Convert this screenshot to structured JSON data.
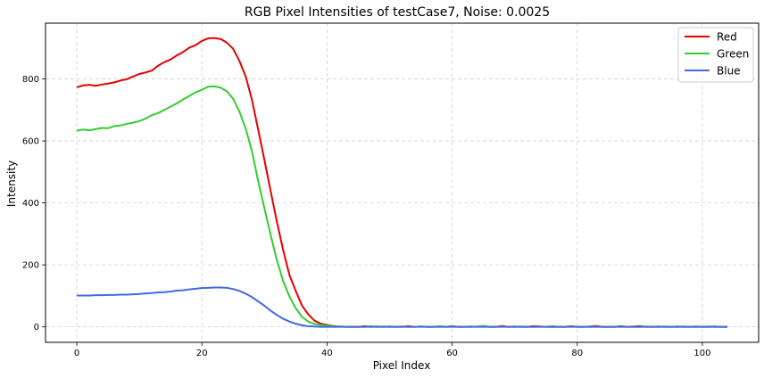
{
  "chart_data": {
    "type": "line",
    "title": "RGB Pixel Intensities of testCase7, Noise: 0.0025",
    "xlabel": "Pixel Index",
    "ylabel": "Intensity",
    "xlim": [
      -5,
      109
    ],
    "ylim": [
      -50,
      980
    ],
    "xticks": [
      0,
      20,
      40,
      60,
      80,
      100
    ],
    "yticks": [
      0,
      200,
      400,
      600,
      800
    ],
    "grid": true,
    "legend_position": "top-right",
    "x": [
      0,
      1,
      2,
      3,
      4,
      5,
      6,
      7,
      8,
      9,
      10,
      11,
      12,
      13,
      14,
      15,
      16,
      17,
      18,
      19,
      20,
      21,
      22,
      23,
      24,
      25,
      26,
      27,
      28,
      29,
      30,
      31,
      32,
      33,
      34,
      35,
      36,
      37,
      38,
      39,
      40,
      41,
      42,
      43,
      44,
      45,
      46,
      47,
      48,
      49,
      50,
      51,
      52,
      53,
      54,
      55,
      56,
      57,
      58,
      59,
      60,
      61,
      62,
      63,
      64,
      65,
      66,
      67,
      68,
      69,
      70,
      71,
      72,
      73,
      74,
      75,
      76,
      77,
      78,
      79,
      80,
      81,
      82,
      83,
      84,
      85,
      86,
      87,
      88,
      89,
      90,
      91,
      92,
      93,
      94,
      95,
      96,
      97,
      98,
      99,
      100,
      101,
      102,
      103,
      104
    ],
    "series": [
      {
        "name": "Red",
        "color": "#e60000",
        "values": [
          773,
          779,
          781,
          778,
          782,
          785,
          789,
          795,
          799,
          808,
          816,
          821,
          827,
          843,
          854,
          863,
          876,
          887,
          901,
          909,
          923,
          931,
          932,
          929,
          917,
          897,
          858,
          808,
          733,
          636,
          538,
          437,
          338,
          247,
          167,
          116,
          69,
          40,
          20,
          10,
          6,
          3,
          1,
          0,
          0,
          0,
          2,
          0,
          1,
          0,
          1,
          0,
          0,
          2,
          0,
          1,
          0,
          0,
          1,
          0,
          2,
          0,
          0,
          1,
          0,
          2,
          0,
          0,
          3,
          0,
          1,
          0,
          0,
          2,
          1,
          0,
          0,
          0,
          0,
          2,
          0,
          0,
          1,
          3,
          0,
          0,
          0,
          2,
          0,
          1,
          2,
          0,
          0,
          1,
          0,
          0,
          1,
          0,
          0,
          1,
          0,
          0,
          1,
          0,
          0
        ]
      },
      {
        "name": "Green",
        "color": "#32cd32",
        "values": [
          633,
          637,
          634,
          638,
          642,
          641,
          648,
          650,
          655,
          659,
          664,
          672,
          683,
          690,
          700,
          711,
          721,
          734,
          745,
          757,
          765,
          775,
          776,
          772,
          760,
          736,
          695,
          640,
          567,
          470,
          382,
          296,
          214,
          147,
          98,
          60,
          32,
          17,
          9,
          6,
          4,
          2,
          1,
          0,
          0,
          0,
          0,
          2,
          0,
          1,
          0,
          0,
          1,
          0,
          0,
          1,
          0,
          0,
          2,
          0,
          1,
          0,
          0,
          0,
          1,
          3,
          0,
          0,
          1,
          0,
          0,
          1,
          0,
          0,
          1,
          0,
          2,
          0,
          0,
          1,
          0,
          0,
          0,
          1,
          0,
          0,
          0,
          1,
          0,
          0,
          0,
          1,
          0,
          0,
          1,
          0,
          0,
          1,
          0,
          0,
          0,
          1,
          0,
          0,
          0
        ]
      },
      {
        "name": "Blue",
        "color": "#4169e1",
        "values": [
          101,
          101,
          101,
          102,
          102,
          103,
          103,
          104,
          104,
          105,
          106,
          108,
          109,
          111,
          112,
          114,
          117,
          118,
          121,
          123,
          125,
          126,
          127,
          127,
          126,
          122,
          116,
          107,
          96,
          82,
          68,
          52,
          38,
          26,
          17,
          10,
          5,
          2,
          1,
          0,
          0,
          0,
          0,
          0,
          0,
          0,
          0,
          0,
          0,
          0,
          0,
          0,
          0,
          0,
          0,
          0,
          0,
          0,
          0,
          0,
          0,
          0,
          0,
          0,
          0,
          0,
          0,
          0,
          0,
          0,
          0,
          0,
          0,
          0,
          0,
          0,
          0,
          0,
          0,
          0,
          0,
          0,
          0,
          0,
          0,
          0,
          0,
          0,
          0,
          0,
          0,
          0,
          0,
          0,
          0,
          0,
          0,
          0,
          0,
          0,
          0,
          0,
          0,
          0,
          0
        ]
      }
    ]
  }
}
